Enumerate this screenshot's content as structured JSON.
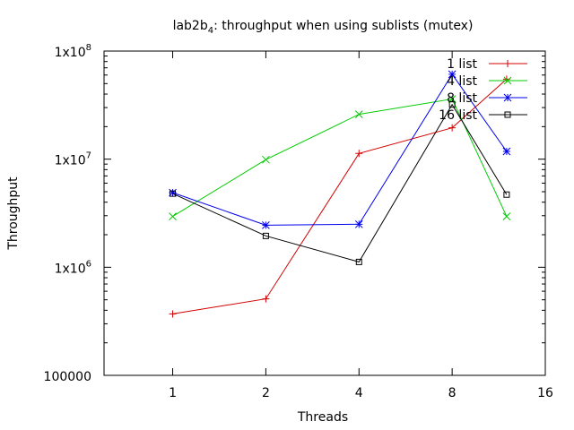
{
  "chart_data": {
    "type": "line",
    "title_main": "lab2b",
    "title_sub": "4",
    "title_rest": ": throughput when using sublists (mutex)",
    "xlabel": "Threads",
    "ylabel": "Throughput",
    "x_scale": "log2",
    "y_scale": "log10",
    "xlim": [
      0.6,
      16
    ],
    "ylim": [
      100000,
      100000000
    ],
    "x_ticks": [
      {
        "value": 1,
        "label": "1"
      },
      {
        "value": 2,
        "label": "2"
      },
      {
        "value": 4,
        "label": "4"
      },
      {
        "value": 8,
        "label": "8"
      },
      {
        "value": 16,
        "label": "16"
      }
    ],
    "y_ticks": [
      {
        "value": 100000,
        "label": "100000",
        "exp": ""
      },
      {
        "value": 1000000,
        "label": "1x10",
        "exp": "6"
      },
      {
        "value": 10000000,
        "label": "1x10",
        "exp": "7"
      },
      {
        "value": 100000000,
        "label": "1x10",
        "exp": "8"
      }
    ],
    "legend_position": "top-right",
    "grid": false,
    "x": [
      1,
      2,
      4,
      8,
      12
    ],
    "series": [
      {
        "name": "1 list",
        "color": "#d40000",
        "marker": "plus",
        "values": [
          370000,
          510000,
          11300000,
          19500000,
          55000000
        ]
      },
      {
        "name": "4 list",
        "color": "#00cc00",
        "marker": "x",
        "values": [
          2950000,
          9900000,
          26000000,
          36000000,
          2950000
        ]
      },
      {
        "name": "8 list",
        "color": "#0000ee",
        "marker": "star",
        "values": [
          4900000,
          2450000,
          2500000,
          61000000,
          11800000
        ]
      },
      {
        "name": "16 list",
        "color": "#000000",
        "marker": "square",
        "values": [
          4800000,
          1950000,
          1120000,
          32000000,
          4700000
        ]
      }
    ]
  }
}
